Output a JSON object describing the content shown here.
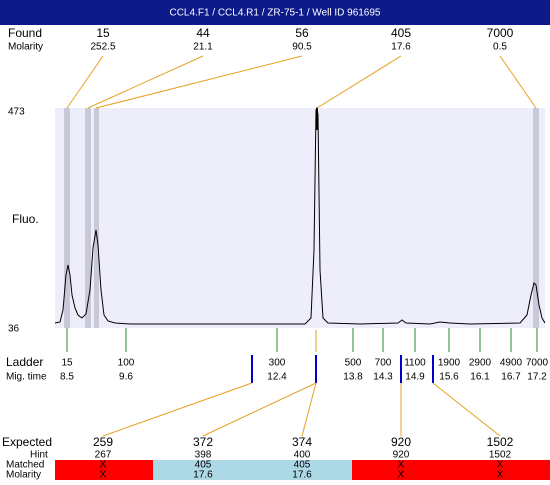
{
  "title": "CCL4.F1 / CCL4.R1 / ZR-75-1 / Well ID 961695",
  "found": {
    "label": "Found",
    "sublabel": "Molarity",
    "peaks": [
      {
        "size": 15,
        "molarity": 252.5
      },
      {
        "size": 44,
        "molarity": 21.1
      },
      {
        "size": 56,
        "molarity": 90.5
      },
      {
        "size": 405,
        "molarity": 17.6
      },
      {
        "size": 7000,
        "molarity": 0.5
      }
    ]
  },
  "axis": {
    "top": 473,
    "bottom": 36,
    "label": "Fluo."
  },
  "ladder": {
    "label": "Ladder",
    "sublabel": "Mig. time",
    "entries": [
      {
        "size": 15,
        "time": 8.5
      },
      {
        "size": 100,
        "time": 9.6
      },
      {
        "size": 300,
        "time": 12.4
      },
      {
        "size": 500,
        "time": 13.8
      },
      {
        "size": 700,
        "time": 14.3
      },
      {
        "size": 1100,
        "time": 14.9
      },
      {
        "size": 1900,
        "time": 15.6
      },
      {
        "size": 2900,
        "time": 16.1
      },
      {
        "size": 4900,
        "time": 16.7
      },
      {
        "size": 7000,
        "time": 17.2
      }
    ]
  },
  "expected": {
    "label": "Expected",
    "hint_label": "Hint",
    "matched_label": "Matched",
    "molarity_label": "Molarity",
    "entries": [
      {
        "expected": 259,
        "hint": 267,
        "matched": "X",
        "molarity": "X"
      },
      {
        "expected": 372,
        "hint": 398,
        "matched": 405,
        "molarity": 17.6
      },
      {
        "expected": 374,
        "hint": 400,
        "matched": 405,
        "molarity": 17.6
      },
      {
        "expected": 920,
        "hint": 920,
        "matched": "X",
        "molarity": "X"
      },
      {
        "expected": 1502,
        "hint": 1502,
        "matched": "X",
        "molarity": "X"
      }
    ]
  }
}
